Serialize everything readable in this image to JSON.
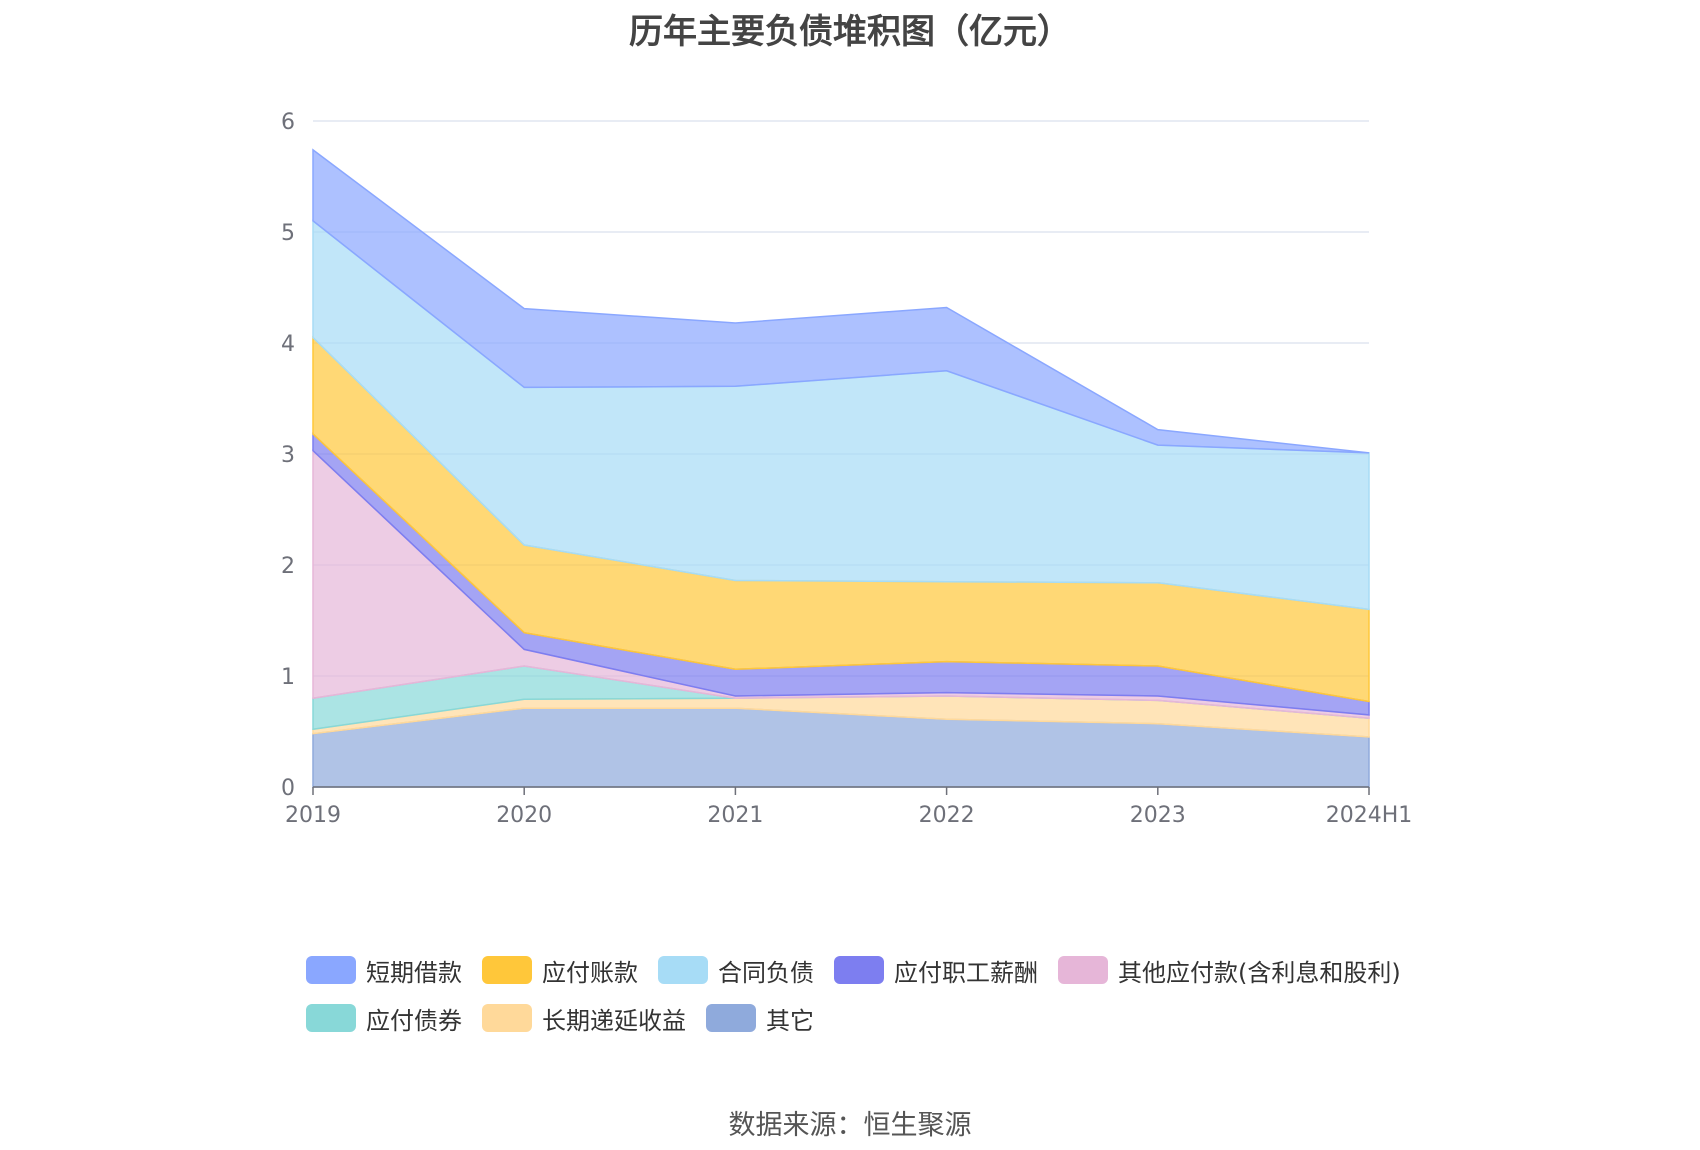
{
  "chart_data": {
    "type": "area",
    "stacked": true,
    "title": "历年主要负债堆积图（亿元）",
    "categories": [
      "2019",
      "2020",
      "2021",
      "2022",
      "2023",
      "2024H1"
    ],
    "ylim": [
      0,
      6
    ],
    "yticks": [
      "0",
      "1",
      "2",
      "3",
      "4",
      "5",
      "6"
    ],
    "grid": true,
    "legend_position": "bottom",
    "series": [
      {
        "name": "其它",
        "color": "#8faadc",
        "values": [
          0.48,
          0.71,
          0.71,
          0.61,
          0.57,
          0.45
        ]
      },
      {
        "name": "长期递延收益",
        "color": "#ffd99a",
        "values": [
          0.04,
          0.08,
          0.09,
          0.21,
          0.21,
          0.17
        ]
      },
      {
        "name": "应付债券",
        "color": "#88d8d8",
        "values": [
          0.28,
          0.3,
          0.0,
          0.0,
          0.0,
          0.0
        ]
      },
      {
        "name": "其他应付款(含利息和股利)",
        "color": "#e6b6d8",
        "values": [
          2.23,
          0.15,
          0.02,
          0.03,
          0.04,
          0.03
        ]
      },
      {
        "name": "应付职工薪酬",
        "color": "#7d7ef0",
        "values": [
          0.15,
          0.15,
          0.24,
          0.28,
          0.27,
          0.12
        ]
      },
      {
        "name": "应付账款",
        "color": "#ffc73a",
        "values": [
          0.87,
          0.79,
          0.8,
          0.72,
          0.75,
          0.83
        ],
        "placeholder": true
      },
      {
        "name": "合同负债",
        "color": "#a7dcf6",
        "values": [
          1.05,
          1.42,
          1.75,
          1.9,
          1.24,
          1.41
        ]
      },
      {
        "name": "短期借款",
        "color": "#8aa7ff",
        "values": [
          0.64,
          0.71,
          0.57,
          0.57,
          0.14,
          0.0
        ]
      }
    ],
    "legend_order": [
      "短期借款",
      "应付账款",
      "合同负债",
      "应付职工薪酬",
      "其他应付款(含利息和股利)",
      "应付债券",
      "长期递延收益",
      "其它"
    ]
  },
  "source": "数据来源：恒生聚源"
}
